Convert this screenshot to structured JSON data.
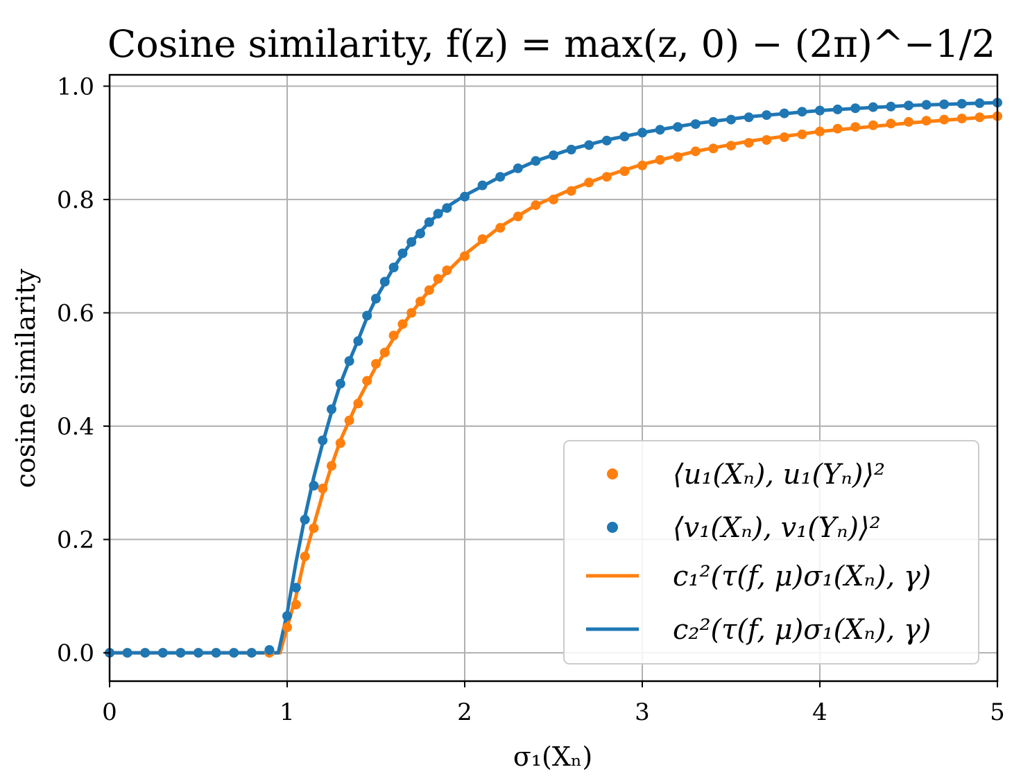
{
  "chart_data": {
    "type": "line",
    "title": "Cosine similarity, f(z) = max(z, 0) − (2π)^−1/2",
    "xlabel": "σ₁(Xₙ)",
    "ylabel": "cosine similarity",
    "xlim": [
      0,
      5
    ],
    "ylim": [
      -0.05,
      1.02
    ],
    "xticks": [
      0,
      1,
      2,
      3,
      4,
      5
    ],
    "yticks": [
      0.0,
      0.2,
      0.4,
      0.6,
      0.8,
      1.0
    ],
    "xtick_labels": [
      "0",
      "1",
      "2",
      "3",
      "4",
      "5"
    ],
    "ytick_labels": [
      "0.0",
      "0.2",
      "0.4",
      "0.6",
      "0.8",
      "1.0"
    ],
    "grid": true,
    "legend_position": "lower-right",
    "series": [
      {
        "name": "⟨u₁(Xₙ), u₁(Yₙ)⟩²",
        "style": "markers",
        "color": "#ff7f0e",
        "x": [
          0,
          0.1,
          0.2,
          0.3,
          0.4,
          0.5,
          0.6,
          0.7,
          0.8,
          0.9,
          1.0,
          1.05,
          1.1,
          1.15,
          1.2,
          1.25,
          1.3,
          1.35,
          1.4,
          1.45,
          1.5,
          1.55,
          1.6,
          1.65,
          1.7,
          1.75,
          1.8,
          1.85,
          1.9,
          2.0,
          2.1,
          2.2,
          2.3,
          2.4,
          2.5,
          2.6,
          2.7,
          2.8,
          2.9,
          3.0,
          3.1,
          3.2,
          3.3,
          3.4,
          3.5,
          3.6,
          3.7,
          3.8,
          3.9,
          4.0,
          4.1,
          4.2,
          4.3,
          4.4,
          4.5,
          4.6,
          4.7,
          4.8,
          4.9,
          5.0
        ],
        "y": [
          0,
          0,
          0,
          0,
          0,
          0,
          0,
          0,
          0,
          0,
          0.045,
          0.085,
          0.17,
          0.22,
          0.29,
          0.33,
          0.37,
          0.41,
          0.44,
          0.48,
          0.51,
          0.53,
          0.56,
          0.58,
          0.6,
          0.62,
          0.64,
          0.66,
          0.675,
          0.7,
          0.73,
          0.75,
          0.77,
          0.79,
          0.8,
          0.815,
          0.83,
          0.84,
          0.85,
          0.86,
          0.87,
          0.875,
          0.885,
          0.89,
          0.895,
          0.9,
          0.905,
          0.91,
          0.915,
          0.92,
          0.925,
          0.928,
          0.931,
          0.934,
          0.937,
          0.939,
          0.941,
          0.943,
          0.945,
          0.947
        ]
      },
      {
        "name": "⟨v₁(Xₙ), v₁(Yₙ)⟩²",
        "style": "markers",
        "color": "#1f77b4",
        "x": [
          0,
          0.1,
          0.2,
          0.3,
          0.4,
          0.5,
          0.6,
          0.7,
          0.8,
          0.9,
          1.0,
          1.05,
          1.1,
          1.15,
          1.2,
          1.25,
          1.3,
          1.35,
          1.4,
          1.45,
          1.5,
          1.55,
          1.6,
          1.65,
          1.7,
          1.75,
          1.8,
          1.85,
          1.9,
          2.0,
          2.1,
          2.2,
          2.3,
          2.4,
          2.5,
          2.6,
          2.7,
          2.8,
          2.9,
          3.0,
          3.1,
          3.2,
          3.3,
          3.4,
          3.5,
          3.6,
          3.7,
          3.8,
          3.9,
          4.0,
          4.1,
          4.2,
          4.3,
          4.4,
          4.5,
          4.6,
          4.7,
          4.8,
          4.9,
          5.0
        ],
        "y": [
          0,
          0,
          0,
          0,
          0,
          0,
          0,
          0,
          0,
          0.005,
          0.065,
          0.115,
          0.235,
          0.295,
          0.375,
          0.43,
          0.475,
          0.515,
          0.55,
          0.595,
          0.625,
          0.655,
          0.68,
          0.705,
          0.725,
          0.74,
          0.76,
          0.775,
          0.785,
          0.805,
          0.825,
          0.84,
          0.855,
          0.868,
          0.878,
          0.888,
          0.896,
          0.904,
          0.911,
          0.918,
          0.923,
          0.928,
          0.933,
          0.937,
          0.941,
          0.945,
          0.949,
          0.952,
          0.955,
          0.957,
          0.959,
          0.961,
          0.963,
          0.964,
          0.966,
          0.967,
          0.968,
          0.969,
          0.97,
          0.971
        ]
      },
      {
        "name": "c₁²(τ(f, μ)σ₁(Xₙ), γ)",
        "style": "line",
        "color": "#ff7f0e",
        "x": [
          0,
          0.96,
          1.0,
          1.05,
          1.1,
          1.15,
          1.2,
          1.25,
          1.3,
          1.35,
          1.4,
          1.45,
          1.5,
          1.6,
          1.7,
          1.8,
          1.9,
          2.0,
          2.2,
          2.4,
          2.6,
          2.8,
          3.0,
          3.3,
          3.6,
          4.0,
          4.5,
          5.0
        ],
        "y": [
          0,
          0,
          0.045,
          0.1,
          0.17,
          0.225,
          0.28,
          0.33,
          0.375,
          0.41,
          0.445,
          0.475,
          0.505,
          0.555,
          0.6,
          0.64,
          0.672,
          0.703,
          0.752,
          0.79,
          0.818,
          0.842,
          0.862,
          0.885,
          0.903,
          0.92,
          0.935,
          0.947
        ]
      },
      {
        "name": "c₂²(τ(f, μ)σ₁(Xₙ), γ)",
        "style": "line",
        "color": "#1f77b4",
        "x": [
          0,
          0.95,
          1.0,
          1.05,
          1.1,
          1.15,
          1.2,
          1.25,
          1.3,
          1.35,
          1.4,
          1.45,
          1.5,
          1.6,
          1.7,
          1.8,
          1.9,
          2.0,
          2.2,
          2.4,
          2.6,
          2.8,
          3.0,
          3.3,
          3.6,
          4.0,
          4.5,
          5.0
        ],
        "y": [
          0,
          0,
          0.07,
          0.16,
          0.24,
          0.31,
          0.37,
          0.425,
          0.475,
          0.515,
          0.552,
          0.592,
          0.625,
          0.68,
          0.725,
          0.76,
          0.787,
          0.807,
          0.84,
          0.868,
          0.889,
          0.905,
          0.918,
          0.934,
          0.946,
          0.957,
          0.966,
          0.971
        ]
      }
    ]
  }
}
